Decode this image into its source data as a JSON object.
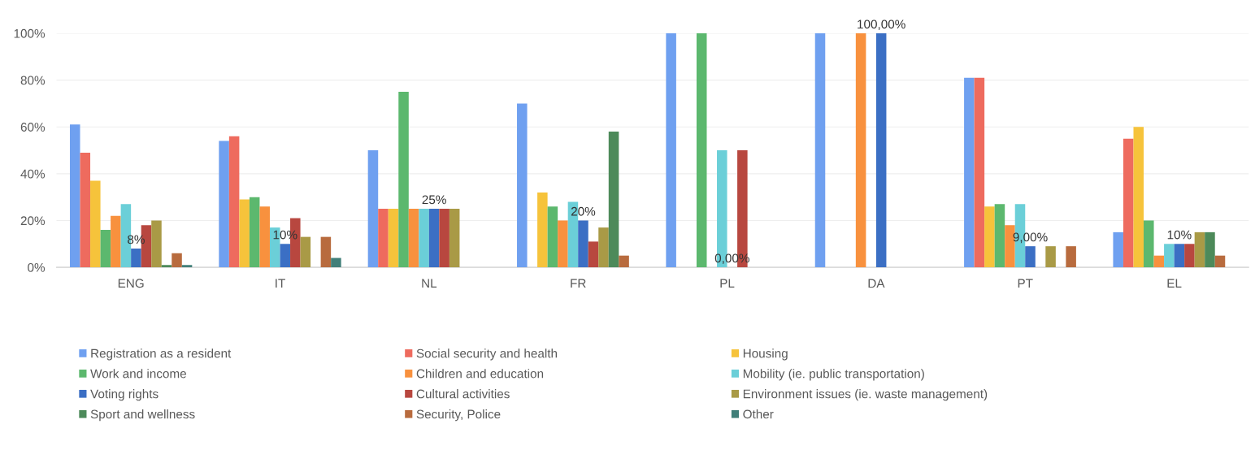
{
  "chart_data": {
    "type": "bar",
    "categories": [
      "ENG",
      "IT",
      "NL",
      "FR",
      "PL",
      "DA",
      "PT",
      "EL"
    ],
    "ylim": [
      0,
      100
    ],
    "yticks": [
      {
        "value": 0,
        "label": "0%"
      },
      {
        "value": 20,
        "label": "20%"
      },
      {
        "value": 40,
        "label": "40%"
      },
      {
        "value": 60,
        "label": "60%"
      },
      {
        "value": 80,
        "label": "80%"
      },
      {
        "value": 100,
        "label": "100%"
      }
    ],
    "grid": "y",
    "legend": "bottom",
    "series": [
      {
        "name": "Registration as a resident",
        "color": "#6fa0f0",
        "values": [
          61,
          54,
          50,
          70,
          100,
          100,
          81,
          15
        ]
      },
      {
        "name": "Social security and health",
        "color": "#ee6b5e",
        "values": [
          49,
          56,
          25,
          0,
          0,
          0,
          81,
          55
        ]
      },
      {
        "name": "Housing",
        "color": "#f6c33b",
        "values": [
          37,
          29,
          25,
          32,
          0,
          0,
          26,
          60
        ]
      },
      {
        "name": "Work and income",
        "color": "#5cb86e",
        "values": [
          16,
          30,
          75,
          26,
          100,
          0,
          27,
          20
        ]
      },
      {
        "name": "Children and education",
        "color": "#f8913e",
        "values": [
          22,
          26,
          25,
          20,
          0,
          100,
          18,
          5
        ]
      },
      {
        "name": "Mobility (ie. public transportation)",
        "color": "#6bcfd8",
        "values": [
          27,
          17,
          25,
          28,
          50,
          0,
          27,
          10
        ]
      },
      {
        "name": "Voting rights",
        "color": "#3b6fc4",
        "values": [
          8,
          10,
          25,
          20,
          0,
          100,
          9,
          10
        ],
        "value_labels": [
          "8%",
          "10%",
          "25%",
          "20%",
          "0,00%",
          "100,00%",
          "9,00%",
          "10%"
        ]
      },
      {
        "name": "Cultural activities",
        "color": "#b8473f",
        "values": [
          18,
          21,
          25,
          11,
          50,
          0,
          0,
          10
        ]
      },
      {
        "name": "Environment issues (ie. waste management)",
        "color": "#a99a46",
        "values": [
          20,
          13,
          25,
          17,
          0,
          0,
          9,
          15
        ]
      },
      {
        "name": "Sport and wellness",
        "color": "#4d8a5a",
        "values": [
          1,
          0,
          0,
          58,
          0,
          0,
          0,
          15
        ]
      },
      {
        "name": "Security, Police",
        "color": "#b86b3e",
        "values": [
          6,
          13,
          0,
          5,
          0,
          0,
          9,
          5
        ]
      },
      {
        "name": "Other",
        "color": "#417f79",
        "values": [
          1,
          4,
          0,
          0,
          0,
          0,
          0,
          0
        ]
      }
    ]
  }
}
